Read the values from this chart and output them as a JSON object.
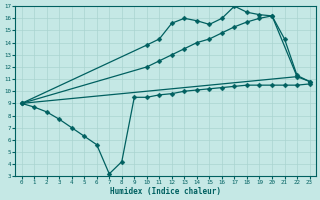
{
  "xlabel": "Humidex (Indice chaleur)",
  "bg_color": "#c5e8e5",
  "grid_color": "#aad4d0",
  "line_color": "#006060",
  "xlim": [
    -0.5,
    23.5
  ],
  "ylim": [
    3,
    17
  ],
  "yticks": [
    3,
    4,
    5,
    6,
    7,
    8,
    9,
    10,
    11,
    12,
    13,
    14,
    15,
    16,
    17
  ],
  "xticks": [
    0,
    1,
    2,
    3,
    4,
    5,
    6,
    7,
    8,
    9,
    10,
    11,
    12,
    13,
    14,
    15,
    16,
    17,
    18,
    19,
    20,
    21,
    22,
    23
  ],
  "line1_x": [
    0,
    1,
    2,
    3,
    4,
    5,
    6,
    7,
    8,
    9,
    10,
    11,
    12,
    13,
    14,
    15,
    16,
    17,
    18,
    19,
    20,
    21,
    22,
    23
  ],
  "line1_y": [
    9.0,
    8.7,
    8.3,
    7.7,
    7.0,
    6.3,
    5.6,
    3.2,
    4.2,
    9.5,
    9.5,
    9.7,
    9.8,
    10.0,
    10.1,
    10.2,
    10.3,
    10.4,
    10.5,
    10.5,
    10.5,
    10.5,
    10.5,
    10.6
  ],
  "line2_x": [
    0,
    10,
    11,
    12,
    13,
    14,
    15,
    16,
    17,
    18,
    19,
    20,
    22,
    23
  ],
  "line2_y": [
    9.0,
    12.0,
    12.5,
    13.0,
    13.5,
    14.0,
    14.3,
    14.8,
    15.3,
    15.7,
    16.0,
    16.2,
    11.2,
    10.8
  ],
  "line3_x": [
    0,
    10,
    11,
    12,
    13,
    14,
    15,
    16,
    17,
    18,
    19,
    20,
    21,
    22,
    23
  ],
  "line3_y": [
    9.0,
    13.8,
    14.3,
    15.6,
    16.0,
    15.8,
    15.5,
    16.0,
    17.0,
    16.5,
    16.3,
    16.2,
    14.3,
    11.3,
    10.8
  ],
  "markersize": 2.5,
  "linewidth": 0.9
}
